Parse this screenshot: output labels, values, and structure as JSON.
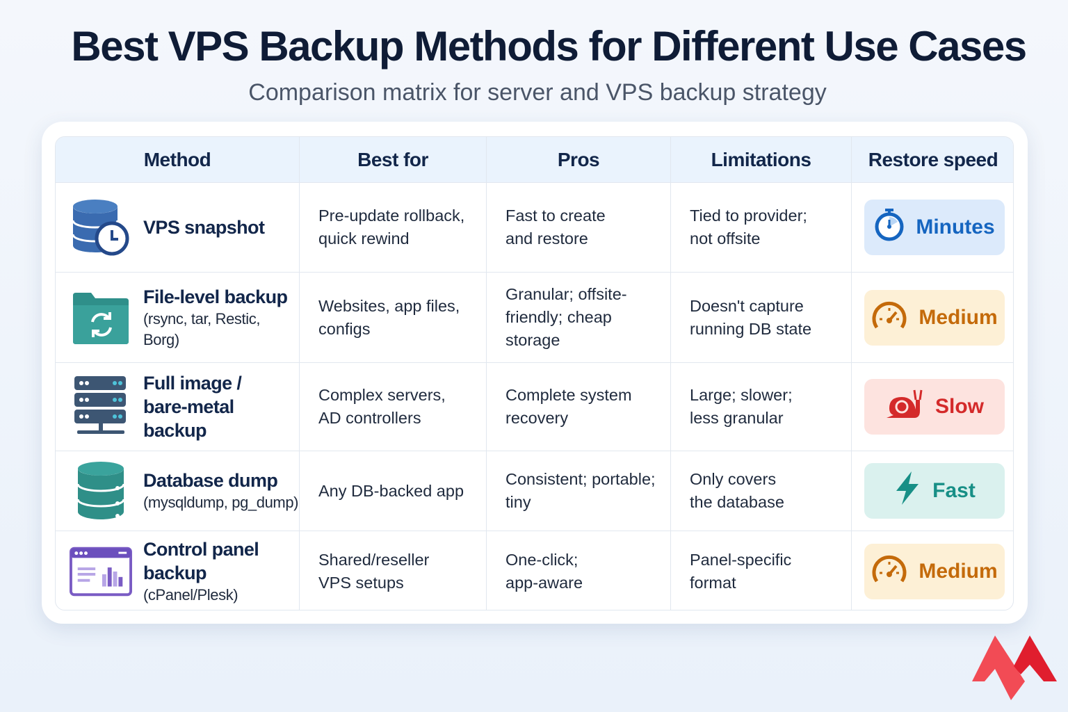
{
  "title": "Best VPS Backup Methods for Different Use Cases",
  "subtitle": "Comparison matrix for server and VPS backup strategy",
  "headers": [
    "Method",
    "Best for",
    "Pros",
    "Limitations",
    "Restore speed"
  ],
  "rows": [
    {
      "method": "VPS snapshot",
      "sub": "",
      "icon": "database-clock-icon",
      "best": "Pre-update rollback,\nquick rewind",
      "pros": "Fast to create\nand restore",
      "limits": "Tied to provider;\nnot offsite",
      "speed": "Minutes",
      "speed_icon": "stopwatch-icon",
      "color": "#1565c0",
      "bg": "#dceafb"
    },
    {
      "method": "File-level backup",
      "sub": "(rsync, tar, Restic, Borg)",
      "icon": "folder-sync-icon",
      "best": "Websites, app files,\nconfigs",
      "pros": "Granular; offsite-\nfriendly; cheap storage",
      "limits": "Doesn't capture\nrunning DB state",
      "speed": "Medium",
      "speed_icon": "speedometer-icon",
      "color": "#c46a0a",
      "bg": "#fdf0d6"
    },
    {
      "method": "Full image /\nbare-metal backup",
      "sub": "",
      "icon": "server-rack-icon",
      "best": "Complex servers,\nAD controllers",
      "pros": "Complete system\nrecovery",
      "limits": "Large; slower;\nless granular",
      "speed": "Slow",
      "speed_icon": "snail-icon",
      "color": "#d42a2a",
      "bg": "#fde3df"
    },
    {
      "method": "Database dump",
      "sub": "(mysqldump, pg_dump)",
      "icon": "database-icon",
      "best": "Any DB-backed app",
      "pros": "Consistent; portable;\ntiny",
      "limits": "Only covers\nthe database",
      "speed": "Fast",
      "speed_icon": "lightning-icon",
      "color": "#178f86",
      "bg": "#daf1ee"
    },
    {
      "method": "Control panel backup",
      "sub": "(cPanel/Plesk)",
      "icon": "control-panel-icon",
      "best": "Shared/reseller\nVPS setups",
      "pros": "One-click;\napp-aware",
      "limits": "Panel-specific\nformat",
      "speed": "Medium",
      "speed_icon": "speedometer-icon",
      "color": "#c46a0a",
      "bg": "#fdf0d6"
    }
  ]
}
